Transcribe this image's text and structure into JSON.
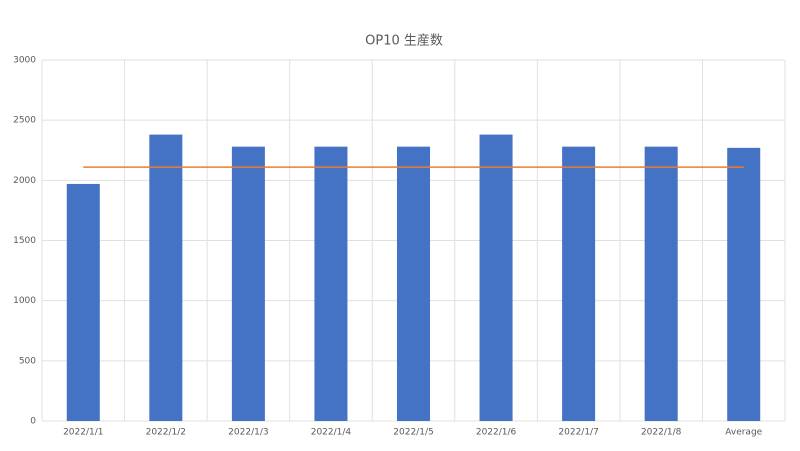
{
  "chart_data": {
    "type": "bar",
    "title": "OP10 生産数",
    "categories": [
      "2022/1/1",
      "2022/1/2",
      "2022/1/3",
      "2022/1/4",
      "2022/1/5",
      "2022/1/6",
      "2022/1/7",
      "2022/1/8",
      "Average"
    ],
    "series": [
      {
        "type": "bar",
        "color": "#4472c4",
        "values": [
          1970,
          2380,
          2280,
          2280,
          2280,
          2380,
          2280,
          2280,
          2270
        ]
      },
      {
        "type": "line",
        "color": "#ed7d31",
        "values": [
          2110,
          2110,
          2110,
          2110,
          2110,
          2110,
          2110,
          2110,
          2110
        ]
      }
    ],
    "ylim": [
      0,
      3000
    ],
    "yticks": [
      0,
      500,
      1000,
      1500,
      2000,
      2500,
      3000
    ],
    "grid": true
  }
}
